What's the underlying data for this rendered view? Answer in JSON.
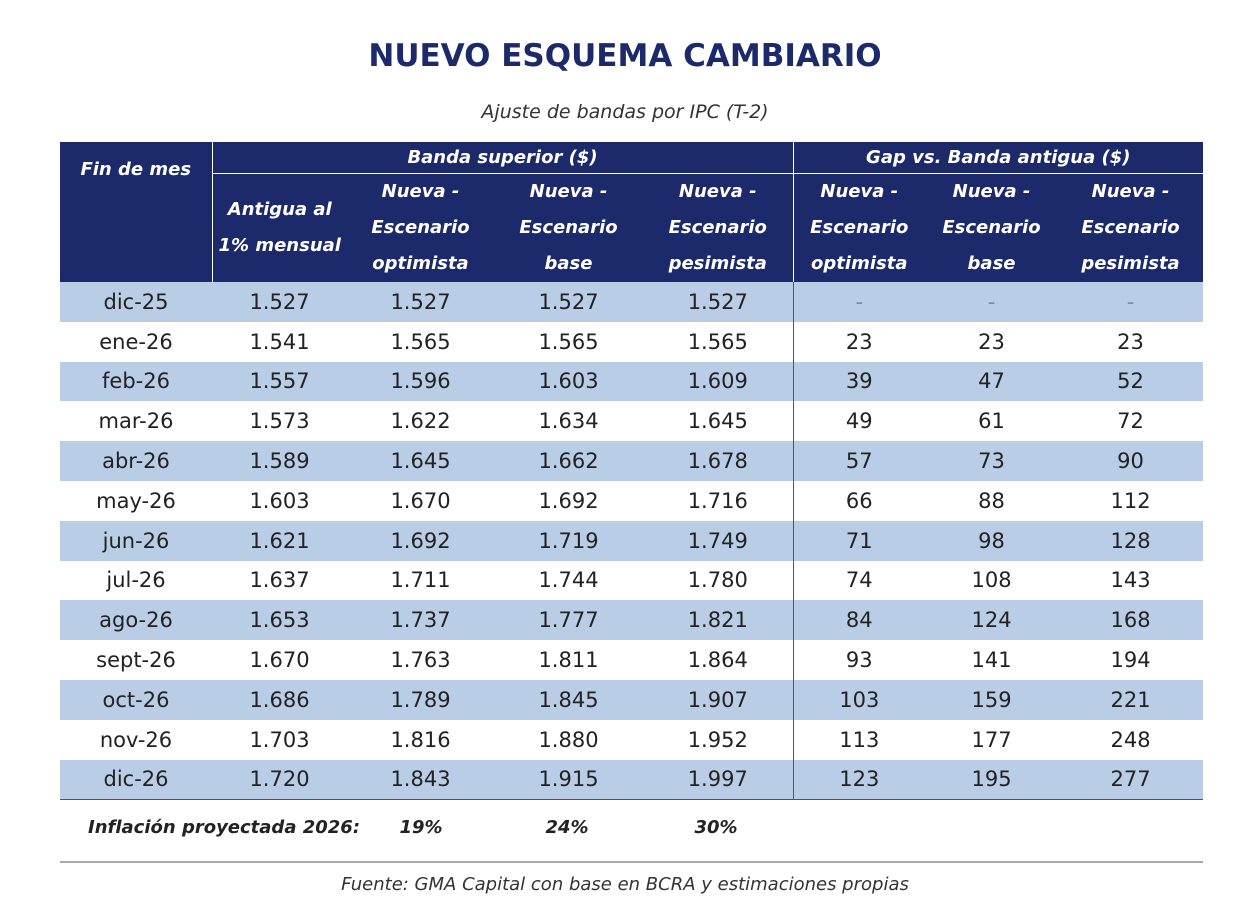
{
  "title": "NUEVO ESQUEMA CAMBIARIO",
  "subtitle": "Ajuste de bandas por IPC (T-2)",
  "table": {
    "row_header": "Fin de mes",
    "groups": [
      "Banda superior ($)",
      "Gap vs. Banda antigua ($)"
    ],
    "columns": [
      "Antigua al 1% mensual",
      "Nueva - Escenario optimista",
      "Nueva - Escenario base",
      "Nueva - Escenario pesimista",
      "Nueva - Escenario optimista",
      "Nueva - Escenario base",
      "Nueva - Escenario pesimista"
    ],
    "rows": [
      [
        "dic-25",
        "1.527",
        "1.527",
        "1.527",
        "1.527",
        "-",
        "-",
        "-"
      ],
      [
        "ene-26",
        "1.541",
        "1.565",
        "1.565",
        "1.565",
        "23",
        "23",
        "23"
      ],
      [
        "feb-26",
        "1.557",
        "1.596",
        "1.603",
        "1.609",
        "39",
        "47",
        "52"
      ],
      [
        "mar-26",
        "1.573",
        "1.622",
        "1.634",
        "1.645",
        "49",
        "61",
        "72"
      ],
      [
        "abr-26",
        "1.589",
        "1.645",
        "1.662",
        "1.678",
        "57",
        "73",
        "90"
      ],
      [
        "may-26",
        "1.603",
        "1.670",
        "1.692",
        "1.716",
        "66",
        "88",
        "112"
      ],
      [
        "jun-26",
        "1.621",
        "1.692",
        "1.719",
        "1.749",
        "71",
        "98",
        "128"
      ],
      [
        "jul-26",
        "1.637",
        "1.711",
        "1.744",
        "1.780",
        "74",
        "108",
        "143"
      ],
      [
        "ago-26",
        "1.653",
        "1.737",
        "1.777",
        "1.821",
        "84",
        "124",
        "168"
      ],
      [
        "sept-26",
        "1.670",
        "1.763",
        "1.811",
        "1.864",
        "93",
        "141",
        "194"
      ],
      [
        "oct-26",
        "1.686",
        "1.789",
        "1.845",
        "1.907",
        "103",
        "159",
        "221"
      ],
      [
        "nov-26",
        "1.703",
        "1.816",
        "1.880",
        "1.952",
        "113",
        "177",
        "248"
      ],
      [
        "dic-26",
        "1.720",
        "1.843",
        "1.915",
        "1.997",
        "123",
        "195",
        "277"
      ]
    ]
  },
  "inflation": {
    "label": "Inflación proyectada 2026:",
    "values": [
      "19%",
      "24%",
      "30%"
    ]
  },
  "source": "Fuente: GMA Capital con base en BCRA y estimaciones propias"
}
